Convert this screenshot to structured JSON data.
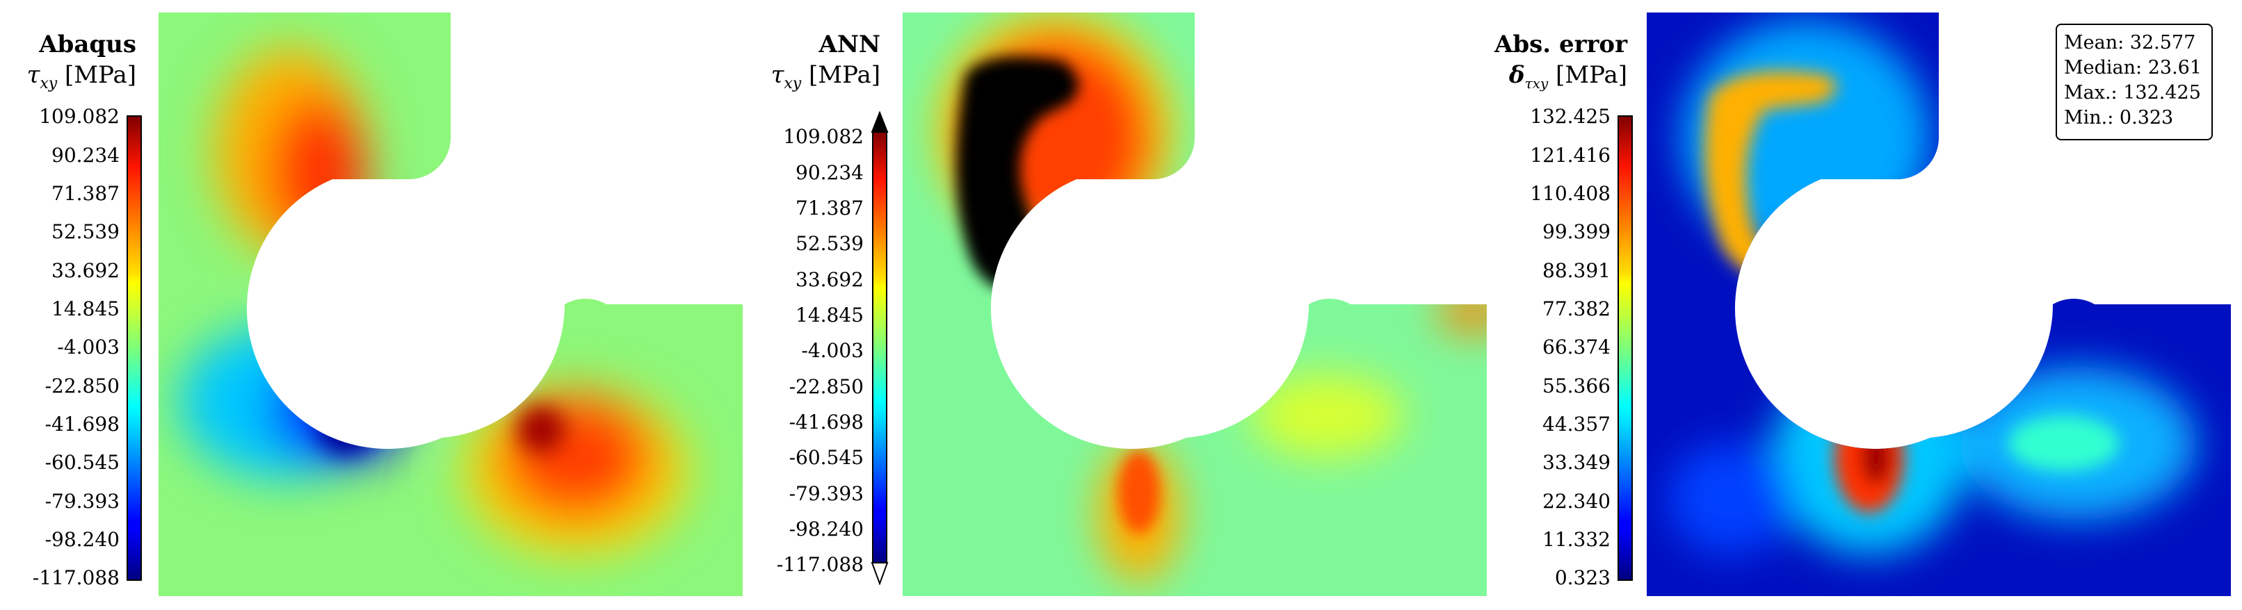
{
  "chart_data": [
    {
      "type": "heatmap",
      "name": "Abaqus",
      "title": "Abaqus",
      "quantity": "τxy [MPa]",
      "colormap": "jet",
      "colorbar": {
        "ticks": [
          "109.082",
          "90.234",
          "71.387",
          "52.539",
          "33.692",
          "14.845",
          "-4.003",
          "-22.850",
          "-41.698",
          "-60.545",
          "-79.393",
          "-98.240",
          "-117.088"
        ],
        "min": -117.088,
        "max": 109.082
      }
    },
    {
      "type": "heatmap",
      "name": "ANN",
      "title": "ANN",
      "quantity": "τxy [MPa]",
      "colormap": "jet",
      "colorbar_extend": "both",
      "colorbar": {
        "ticks": [
          "109.082",
          "90.234",
          "71.387",
          "52.539",
          "33.692",
          "14.845",
          "-4.003",
          "-22.850",
          "-41.698",
          "-60.545",
          "-79.393",
          "-98.240",
          "-117.088"
        ],
        "min": -117.088,
        "max": 109.082
      }
    },
    {
      "type": "heatmap",
      "name": "Abs. error",
      "title": "Abs. error",
      "quantity": "δτxy [MPa]",
      "colormap": "jet",
      "colorbar": {
        "ticks": [
          "132.425",
          "121.416",
          "110.408",
          "99.399",
          "88.391",
          "77.382",
          "66.374",
          "55.366",
          "44.357",
          "33.349",
          "22.340",
          "11.332",
          "0.323"
        ],
        "min": 0.323,
        "max": 132.425
      },
      "stats": {
        "mean": "Mean: 32.577",
        "median": "Median: 23.61",
        "max": "Max.: 132.425",
        "min": "Min.: 0.323"
      }
    }
  ],
  "labels": {
    "abaqus_title": "Abaqus",
    "ann_title": "ANN",
    "err_title": "Abs. error",
    "tau_sym": "τ",
    "tau_sub": "xy",
    "delta_sym": "δ",
    "unit": "[MPa]"
  },
  "colors": {
    "background_field": "#8cf77a",
    "jet_low": "#00007f",
    "jet_high": "#7f0000",
    "clip_over": "#000000",
    "clip_under": "#ffffff"
  }
}
